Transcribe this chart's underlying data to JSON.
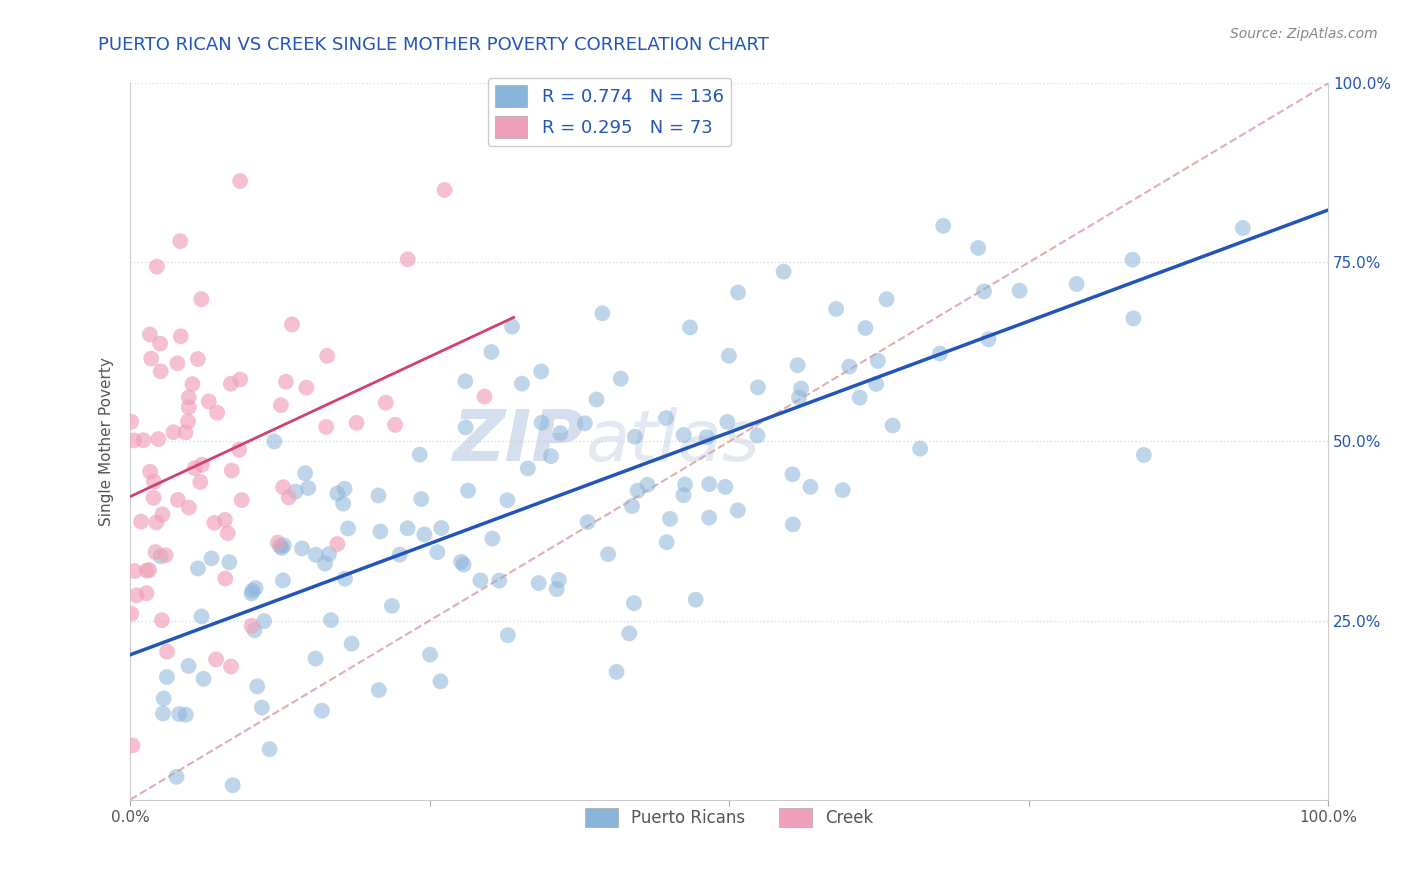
{
  "title": "PUERTO RICAN VS CREEK SINGLE MOTHER POVERTY CORRELATION CHART",
  "source": "Source: ZipAtlas.com",
  "ylabel": "Single Mother Poverty",
  "xlim": [
    0.0,
    1.0
  ],
  "ylim": [
    0.0,
    1.0
  ],
  "xticks": [
    0.0,
    0.25,
    0.5,
    0.75,
    1.0
  ],
  "xtick_labels": [
    "0.0%",
    "",
    "",
    "",
    "100.0%"
  ],
  "ytick_labels": [
    "25.0%",
    "50.0%",
    "75.0%",
    "100.0%"
  ],
  "yticks": [
    0.25,
    0.5,
    0.75,
    1.0
  ],
  "blue_color": "#8ab4d9",
  "pink_color": "#f0a0b8",
  "blue_line_color": "#2255bb",
  "pink_line_color": "#d04070",
  "dashed_line_color": "#dda0a0",
  "title_color": "#2255bb",
  "legend_text_color": "#2255bb",
  "R_blue": 0.774,
  "N_blue": 136,
  "R_pink": 0.295,
  "N_pink": 73,
  "background_color": "#ffffff",
  "grid_color": "#dddddd",
  "blue_line_start_y": 0.2,
  "blue_line_end_y": 0.8,
  "pink_line_start_x": 0.0,
  "pink_line_start_y": 0.4,
  "pink_line_end_x": 0.3,
  "pink_line_end_y": 0.55
}
